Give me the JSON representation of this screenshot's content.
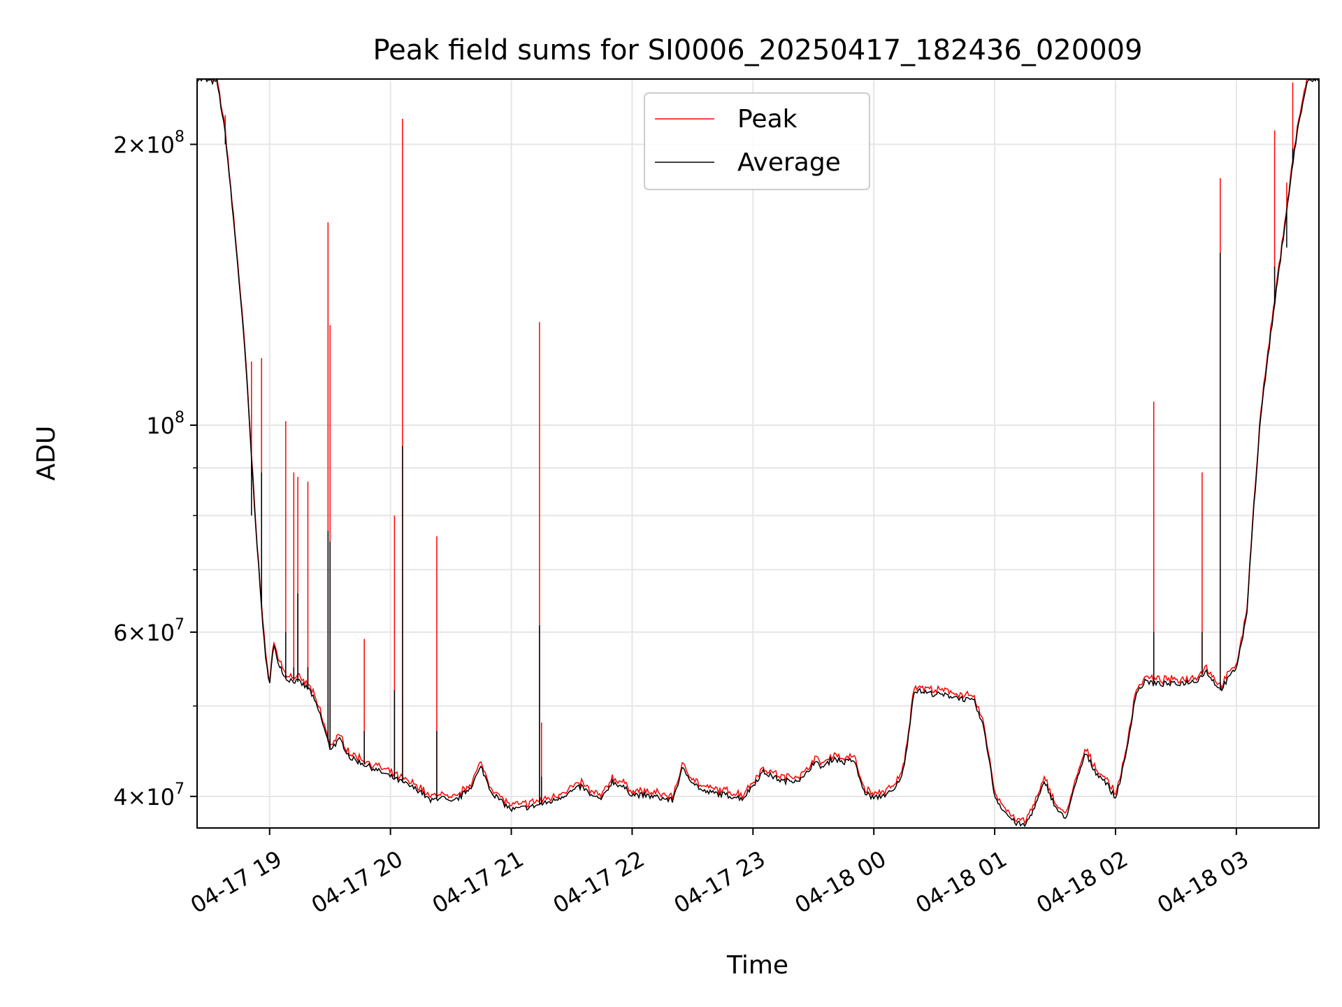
{
  "chart_data": {
    "type": "line",
    "title": "Peak field sums for SI0006_20250417_182436_020009",
    "xlabel": "Time",
    "ylabel": "ADU",
    "yscale": "log",
    "ylim": [
      37000000,
      235000000
    ],
    "xlim": [
      "2025-04-17 18:24",
      "2025-04-18 03:41"
    ],
    "grid": true,
    "legend_position": "top-center",
    "x_ticks": [
      "2025-04-17 19:00",
      "2025-04-17 20:00",
      "2025-04-17 21:00",
      "2025-04-17 22:00",
      "2025-04-17 23:00",
      "2025-04-18 00:00",
      "2025-04-18 01:00",
      "2025-04-18 02:00",
      "2025-04-18 03:00"
    ],
    "x_tick_labels": [
      "04-17 19",
      "04-17 20",
      "04-17 21",
      "04-17 22",
      "04-17 23",
      "04-18 00",
      "04-18 01",
      "04-18 02",
      "04-18 03"
    ],
    "y_ticks": [
      {
        "value": 40000000,
        "mant": "4",
        "exp": "7"
      },
      {
        "value": 60000000,
        "mant": "6",
        "exp": "7"
      },
      {
        "value": 100000000,
        "mant": "",
        "exp": "8"
      },
      {
        "value": 200000000,
        "mant": "2",
        "exp": "8"
      }
    ],
    "y_minor": [
      50000000,
      70000000,
      80000000,
      90000000
    ],
    "series": [
      {
        "name": "Average",
        "color": "#000000"
      },
      {
        "name": "Peak",
        "color": "#ff0000"
      }
    ],
    "average_points": [
      [
        "2025-04-17 18:24",
        235000000
      ],
      [
        "2025-04-17 18:34",
        233000000
      ],
      [
        "2025-04-17 18:38",
        205000000
      ],
      [
        "2025-04-17 18:44",
        150000000
      ],
      [
        "2025-04-17 18:48",
        118000000
      ],
      [
        "2025-04-17 18:52",
        85000000
      ],
      [
        "2025-04-17 18:55",
        68000000
      ],
      [
        "2025-04-17 18:58",
        56000000
      ],
      [
        "2025-04-17 19:00",
        53000000
      ],
      [
        "2025-04-17 19:02",
        58000000
      ],
      [
        "2025-04-17 19:04",
        56000000
      ],
      [
        "2025-04-17 19:08",
        53500000
      ],
      [
        "2025-04-17 19:15",
        53000000
      ],
      [
        "2025-04-17 19:20",
        52000000
      ],
      [
        "2025-04-17 19:25",
        49000000
      ],
      [
        "2025-04-17 19:30",
        45000000
      ],
      [
        "2025-04-17 19:35",
        46000000
      ],
      [
        "2025-04-17 19:40",
        44000000
      ],
      [
        "2025-04-17 19:45",
        43500000
      ],
      [
        "2025-04-17 19:50",
        43000000
      ],
      [
        "2025-04-17 19:55",
        42500000
      ],
      [
        "2025-04-17 20:00",
        42000000
      ],
      [
        "2025-04-17 20:05",
        41500000
      ],
      [
        "2025-04-17 20:10",
        41000000
      ],
      [
        "2025-04-17 20:15",
        40500000
      ],
      [
        "2025-04-17 20:20",
        39500000
      ],
      [
        "2025-04-17 20:25",
        40000000
      ],
      [
        "2025-04-17 20:30",
        39300000
      ],
      [
        "2025-04-17 20:35",
        40000000
      ],
      [
        "2025-04-17 20:40",
        41000000
      ],
      [
        "2025-04-17 20:45",
        43000000
      ],
      [
        "2025-04-17 20:50",
        40500000
      ],
      [
        "2025-04-17 20:55",
        39500000
      ],
      [
        "2025-04-17 21:00",
        38700000
      ],
      [
        "2025-04-17 21:10",
        39000000
      ],
      [
        "2025-04-17 21:20",
        39500000
      ],
      [
        "2025-04-17 21:30",
        40500000
      ],
      [
        "2025-04-17 21:35",
        41000000
      ],
      [
        "2025-04-17 21:40",
        40000000
      ],
      [
        "2025-04-17 21:45",
        39700000
      ],
      [
        "2025-04-17 21:50",
        41500000
      ],
      [
        "2025-04-17 21:55",
        41000000
      ],
      [
        "2025-04-17 22:00",
        40200000
      ],
      [
        "2025-04-17 22:10",
        40000000
      ],
      [
        "2025-04-17 22:20",
        39600000
      ],
      [
        "2025-04-17 22:25",
        42800000
      ],
      [
        "2025-04-17 22:30",
        41500000
      ],
      [
        "2025-04-17 22:35",
        40500000
      ],
      [
        "2025-04-17 22:45",
        40200000
      ],
      [
        "2025-04-17 22:55",
        39800000
      ],
      [
        "2025-04-17 23:05",
        42500000
      ],
      [
        "2025-04-17 23:15",
        41500000
      ],
      [
        "2025-04-17 23:25",
        41800000
      ],
      [
        "2025-04-17 23:30",
        43500000
      ],
      [
        "2025-04-17 23:35",
        43000000
      ],
      [
        "2025-04-17 23:40",
        44000000
      ],
      [
        "2025-04-17 23:45",
        43500000
      ],
      [
        "2025-04-17 23:50",
        43800000
      ],
      [
        "2025-04-17 23:55",
        40500000
      ],
      [
        "2025-04-18 00:00",
        39800000
      ],
      [
        "2025-04-18 00:10",
        40500000
      ],
      [
        "2025-04-18 00:15",
        42800000
      ],
      [
        "2025-04-18 00:20",
        52000000
      ],
      [
        "2025-04-18 00:30",
        51500000
      ],
      [
        "2025-04-18 00:40",
        51200000
      ],
      [
        "2025-04-18 00:50",
        50500000
      ],
      [
        "2025-04-18 00:55",
        47000000
      ],
      [
        "2025-04-18 01:00",
        40000000
      ],
      [
        "2025-04-18 01:05",
        38500000
      ],
      [
        "2025-04-18 01:10",
        37500000
      ],
      [
        "2025-04-18 01:15",
        37200000
      ],
      [
        "2025-04-18 01:20",
        39000000
      ],
      [
        "2025-04-18 01:25",
        41500000
      ],
      [
        "2025-04-18 01:30",
        39000000
      ],
      [
        "2025-04-18 01:35",
        37800000
      ],
      [
        "2025-04-18 01:40",
        41000000
      ],
      [
        "2025-04-18 01:45",
        44500000
      ],
      [
        "2025-04-18 01:50",
        42500000
      ],
      [
        "2025-04-18 01:55",
        41500000
      ],
      [
        "2025-04-18 02:00",
        39800000
      ],
      [
        "2025-04-18 02:05",
        44000000
      ],
      [
        "2025-04-18 02:10",
        51500000
      ],
      [
        "2025-04-18 02:15",
        53200000
      ],
      [
        "2025-04-18 02:20",
        52800000
      ],
      [
        "2025-04-18 02:30",
        52800000
      ],
      [
        "2025-04-18 02:40",
        53200000
      ],
      [
        "2025-04-18 02:45",
        54500000
      ],
      [
        "2025-04-18 02:52",
        52000000
      ],
      [
        "2025-04-18 03:00",
        55000000
      ],
      [
        "2025-04-18 03:05",
        62000000
      ],
      [
        "2025-04-18 03:08",
        78000000
      ],
      [
        "2025-04-18 03:12",
        102000000
      ],
      [
        "2025-04-18 03:16",
        120000000
      ],
      [
        "2025-04-18 03:20",
        140000000
      ],
      [
        "2025-04-18 03:25",
        170000000
      ],
      [
        "2025-04-18 03:30",
        205000000
      ],
      [
        "2025-04-18 03:35",
        233000000
      ],
      [
        "2025-04-18 03:41",
        235000000
      ]
    ],
    "peak_offset_ratio": 1.01,
    "peak_spikes": [
      {
        "x": "2025-04-17 18:38",
        "peak": 215000000,
        "avg": 200000000
      },
      {
        "x": "2025-04-17 18:51",
        "peak": 117000000,
        "avg": 80000000
      },
      {
        "x": "2025-04-17 18:56",
        "peak": 118000000,
        "avg": 89000000
      },
      {
        "x": "2025-04-17 19:08",
        "peak": 101000000,
        "avg": 60000000
      },
      {
        "x": "2025-04-17 19:12",
        "peak": 89000000,
        "avg": 55000000
      },
      {
        "x": "2025-04-17 19:14",
        "peak": 88000000,
        "avg": 66000000
      },
      {
        "x": "2025-04-17 19:19",
        "peak": 87000000,
        "avg": 55000000
      },
      {
        "x": "2025-04-17 19:29",
        "peak": 165000000,
        "avg": 77000000
      },
      {
        "x": "2025-04-17 19:30",
        "peak": 128000000,
        "avg": 75000000
      },
      {
        "x": "2025-04-17 19:47",
        "peak": 59000000,
        "avg": 47000000
      },
      {
        "x": "2025-04-17 20:02",
        "peak": 80000000,
        "avg": 52000000
      },
      {
        "x": "2025-04-17 20:06",
        "peak": 213000000,
        "avg": 95000000
      },
      {
        "x": "2025-04-17 20:23",
        "peak": 76000000,
        "avg": 47000000
      },
      {
        "x": "2025-04-17 21:14",
        "peak": 129000000,
        "avg": 61000000
      },
      {
        "x": "2025-04-17 21:15",
        "peak": 48000000,
        "avg": 42000000
      },
      {
        "x": "2025-04-18 02:19",
        "peak": 106000000,
        "avg": 60000000
      },
      {
        "x": "2025-04-18 02:43",
        "peak": 89000000,
        "avg": 60000000
      },
      {
        "x": "2025-04-18 02:52",
        "peak": 184000000,
        "avg": 153000000
      },
      {
        "x": "2025-04-18 03:19",
        "peak": 207000000,
        "avg": 148000000
      },
      {
        "x": "2025-04-18 03:25",
        "peak": 182000000,
        "avg": 155000000
      },
      {
        "x": "2025-04-18 03:28",
        "peak": 233000000,
        "avg": 198000000
      }
    ]
  }
}
